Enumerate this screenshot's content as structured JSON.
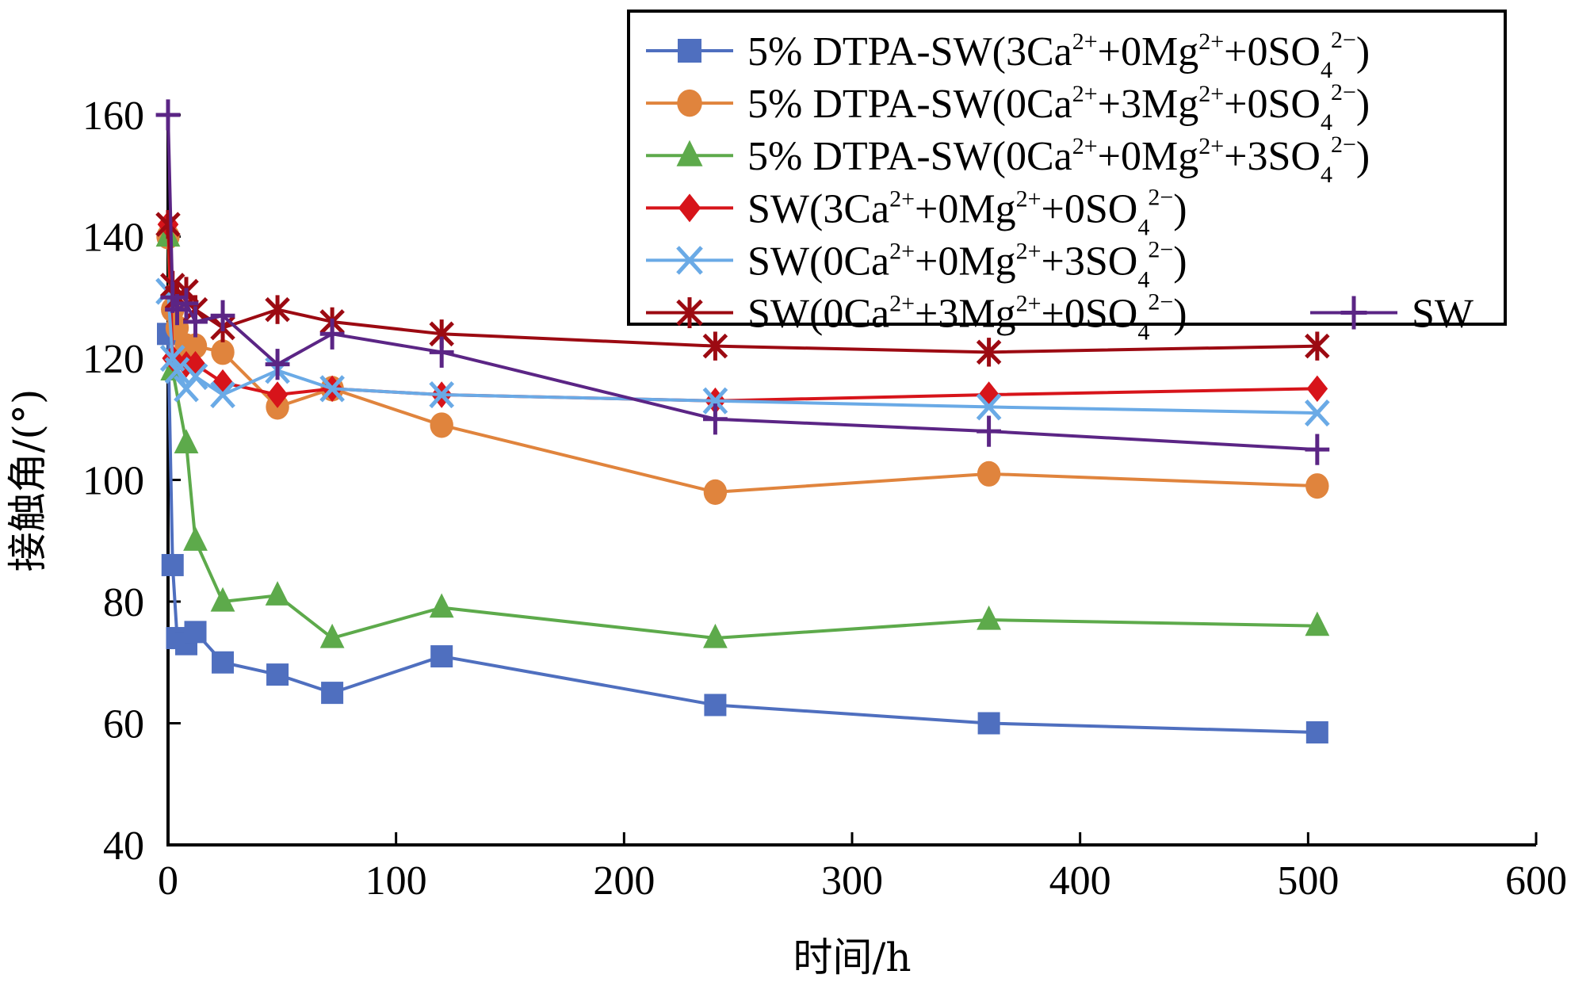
{
  "chart_data": {
    "type": "line",
    "title": "",
    "xlabel": "时间/h",
    "ylabel": "接触角/(°)",
    "xlim": [
      0,
      600
    ],
    "ylim": [
      40,
      160
    ],
    "xticks": [
      0,
      100,
      200,
      300,
      400,
      500,
      600
    ],
    "yticks": [
      40,
      60,
      80,
      100,
      120,
      140,
      160
    ],
    "grid": false,
    "legend_position": "top-right",
    "series": [
      {
        "name": "5% DTPA-SW(3Ca2++0Mg2++0SO42−)",
        "legend_parts": [
          "5% DTPA-SW(3Ca",
          "2+",
          "+0Mg",
          "2+",
          "+0SO",
          "4",
          "2−",
          ")"
        ],
        "color": "#4f6fbf",
        "marker": "square",
        "x": [
          0,
          2,
          4,
          8,
          12,
          24,
          48,
          72,
          120,
          240,
          360,
          504
        ],
        "y": [
          124,
          86,
          74,
          73,
          75,
          70,
          68,
          65,
          71,
          63,
          60,
          58.5
        ]
      },
      {
        "name": "5% DTPA-SW(0Ca2++3Mg2++0SO42−)",
        "legend_parts": [
          "5% DTPA-SW(0Ca",
          "2+",
          "+3Mg",
          "2+",
          "+0SO",
          "4",
          "2−",
          ")"
        ],
        "color": "#e0843d",
        "marker": "circle",
        "x": [
          0,
          2,
          4,
          8,
          12,
          24,
          48,
          72,
          120,
          240,
          360,
          504
        ],
        "y": [
          140,
          128,
          125,
          122,
          122,
          121,
          112,
          115,
          109,
          98,
          101,
          99
        ]
      },
      {
        "name": "5% DTPA-SW(0Ca2++0Mg2++3SO42−)",
        "legend_parts": [
          "5% DTPA-SW(0Ca",
          "2+",
          "+0Mg",
          "2+",
          "+3SO",
          "4",
          "2−",
          ")"
        ],
        "color": "#5daa4b",
        "marker": "triangle",
        "x": [
          0,
          2,
          8,
          12,
          24,
          48,
          72,
          120,
          240,
          360,
          504
        ],
        "y": [
          140,
          118,
          106,
          90,
          80,
          81,
          74,
          79,
          74,
          77,
          76
        ]
      },
      {
        "name": "SW(3Ca2++0Mg2++0SO42−)",
        "legend_parts": [
          "SW(3Ca",
          "2+",
          "+0Mg",
          "2+",
          "+0SO",
          "4",
          "2−",
          ")"
        ],
        "color": "#d7141a",
        "marker": "diamond",
        "x": [
          0,
          2,
          8,
          12,
          24,
          48,
          72,
          120,
          240,
          360,
          504
        ],
        "y": [
          142,
          120,
          119,
          119,
          116,
          114,
          115,
          114,
          113,
          114,
          115
        ]
      },
      {
        "name": "SW(0Ca2++0Mg2++3SO42−)",
        "legend_parts": [
          "SW(0Ca",
          "2+",
          "+0Mg",
          "2+",
          "+3SO",
          "4",
          "2−",
          ")"
        ],
        "color": "#6aaae6",
        "marker": "x",
        "x": [
          0,
          2,
          4,
          8,
          12,
          24,
          48,
          72,
          120,
          240,
          360,
          504
        ],
        "y": [
          131,
          120,
          118,
          115,
          117,
          114,
          118,
          115,
          114,
          113,
          112,
          111
        ]
      },
      {
        "name": "SW(0Ca2++3Mg2++0SO42−)",
        "legend_parts": [
          "SW(0Ca",
          "2+",
          "+3Mg",
          "2+",
          "+0SO",
          "4",
          "2−",
          ")"
        ],
        "color": "#9c0a12",
        "marker": "asterisk",
        "x": [
          0,
          2,
          4,
          8,
          12,
          24,
          48,
          72,
          120,
          240,
          360,
          504
        ],
        "y": [
          142,
          132,
          130,
          131,
          128,
          125,
          128,
          126,
          124,
          122,
          121,
          122
        ]
      },
      {
        "name": "SW",
        "legend_parts": [
          "SW"
        ],
        "color": "#5b2585",
        "marker": "plus",
        "x": [
          0,
          2,
          4,
          8,
          12,
          24,
          48,
          72,
          120,
          240,
          360,
          504
        ],
        "y": [
          160,
          130,
          128,
          129,
          126,
          127,
          119,
          124,
          121,
          110,
          108,
          105
        ]
      }
    ]
  }
}
